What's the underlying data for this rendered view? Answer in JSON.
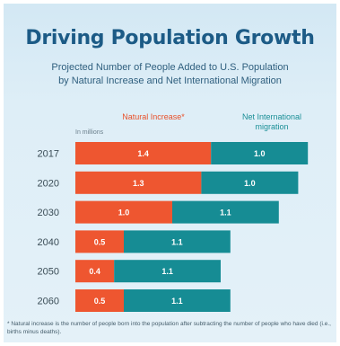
{
  "title": "Driving Population Growth",
  "subtitle_line1": "Projected Number of People Added to U.S. Population",
  "subtitle_line2": "by Natural Increase and Net International Migration",
  "unit_label": "In millions",
  "footnote": "* Natural increase is the number of people born into the population after subtracting the number of people who have died (i.e., births minus deaths).",
  "colors": {
    "natural_increase": "#ee5630",
    "net_migration": "#168c94"
  },
  "chart_data": {
    "type": "bar",
    "orientation": "horizontal",
    "stacked": true,
    "categories": [
      "2017",
      "2020",
      "2030",
      "2040",
      "2050",
      "2060"
    ],
    "series": [
      {
        "name": "Natural Increase*",
        "values": [
          1.4,
          1.3,
          1.0,
          0.5,
          0.4,
          0.5
        ]
      },
      {
        "name": "Net International migration",
        "values": [
          1.0,
          1.0,
          1.1,
          1.1,
          1.1,
          1.1
        ]
      }
    ],
    "data_labels": [
      [
        "1.4",
        "1.3",
        "1.0",
        "0.5",
        "0.4",
        "0.5"
      ],
      [
        "1.0",
        "1.0",
        "1.1",
        "1.1",
        "1.1",
        "1.1"
      ]
    ],
    "legend": "top",
    "grid": false
  }
}
